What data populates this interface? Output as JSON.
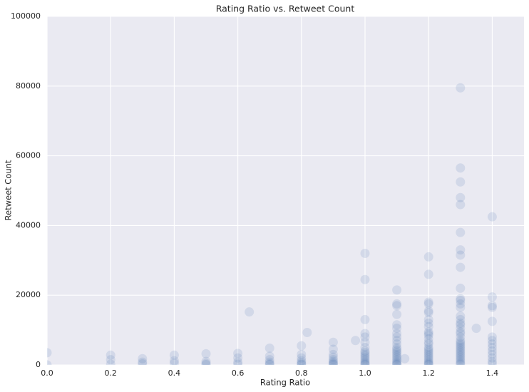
{
  "chart_data": {
    "type": "scatter",
    "title": "Rating Ratio vs. Retweet Count",
    "x_label": "Rating Ratio",
    "y_label": "Retweet Count",
    "color": "#4c72b0",
    "grid": true,
    "xlim": [
      0,
      1.5
    ],
    "ylim": [
      0,
      100000
    ],
    "xticks": [
      {
        "value": 0,
        "label": "0.0"
      },
      0.2,
      0.4,
      0.6,
      0.8,
      {
        "value": 1,
        "label": "1.0"
      },
      1.2,
      1.4
    ],
    "yticks": [
      0,
      20000,
      40000,
      60000,
      80000,
      100000
    ],
    "x": [
      0,
      0,
      0.2,
      0.2,
      0.2,
      0.3,
      0.3,
      0.3,
      0.4,
      0.4,
      0.4,
      0.5,
      0.5,
      0.5,
      0.5,
      0.6,
      0.6,
      0.6,
      0.6,
      0.636,
      0.7,
      0.7,
      0.7,
      0.7,
      0.7,
      0.7,
      0.8,
      0.8,
      0.8,
      0.8,
      0.8,
      0.8,
      0.8,
      0.818,
      0.9,
      0.9,
      0.9,
      0.9,
      0.9,
      0.9,
      0.9,
      0.9,
      0.9,
      0.97,
      1,
      1,
      1,
      1,
      1,
      1,
      1,
      1,
      1,
      1,
      1,
      1,
      1,
      1,
      1,
      1,
      1,
      1.1,
      1.1,
      1.1,
      1.1,
      1.1,
      1.1,
      1.1,
      1.1,
      1.1,
      1.1,
      1.1,
      1.1,
      1.1,
      1.1,
      1.1,
      1.1,
      1.1,
      1.1,
      1.1,
      1.1,
      1.1,
      1.1,
      1.125,
      1.2,
      1.2,
      1.2,
      1.2,
      1.2,
      1.2,
      1.2,
      1.2,
      1.2,
      1.2,
      1.2,
      1.2,
      1.2,
      1.2,
      1.2,
      1.2,
      1.2,
      1.2,
      1.2,
      1.2,
      1.2,
      1.2,
      1.2,
      1.2,
      1.2,
      1.2,
      1.2,
      1.3,
      1.3,
      1.3,
      1.3,
      1.3,
      1.3,
      1.3,
      1.3,
      1.3,
      1.3,
      1.3,
      1.3,
      1.3,
      1.3,
      1.3,
      1.3,
      1.3,
      1.3,
      1.3,
      1.3,
      1.3,
      1.3,
      1.3,
      1.3,
      1.3,
      1.3,
      1.3,
      1.3,
      1.3,
      1.3,
      1.3,
      1.3,
      1.3,
      1.3,
      1.3,
      1.3,
      1.3,
      1.35,
      1.4,
      1.4,
      1.4,
      1.4,
      1.4,
      1.4,
      1.4,
      1.4,
      1.4,
      1.4,
      1.4,
      1.4,
      1.4,
      1.4
    ],
    "values": [
      3500,
      0,
      2800,
      1500,
      200,
      1800,
      800,
      300,
      2800,
      1200,
      500,
      3200,
      1000,
      400,
      100,
      3300,
      2000,
      800,
      200,
      15200,
      4800,
      2500,
      1500,
      800,
      300,
      100,
      5500,
      3000,
      2000,
      1200,
      700,
      300,
      100,
      9300,
      6500,
      4500,
      3000,
      2200,
      1500,
      1000,
      600,
      300,
      100,
      7000,
      32000,
      24500,
      13000,
      9000,
      8000,
      6500,
      5000,
      4000,
      3500,
      3000,
      2500,
      2000,
      1500,
      1000,
      600,
      300,
      100,
      21500,
      17500,
      17000,
      14500,
      11500,
      10500,
      9000,
      8000,
      7000,
      6000,
      5000,
      4500,
      4000,
      3500,
      3000,
      2500,
      2000,
      1500,
      1000,
      600,
      300,
      100,
      1800,
      31000,
      26000,
      18000,
      17500,
      15500,
      15000,
      13000,
      12000,
      11000,
      9500,
      9000,
      8500,
      7500,
      6500,
      6000,
      5000,
      4500,
      4000,
      3500,
      3000,
      2500,
      2000,
      1500,
      1000,
      600,
      300,
      100,
      79500,
      56500,
      52500,
      48000,
      46000,
      38000,
      33000,
      31500,
      28000,
      22000,
      19000,
      18500,
      17500,
      16500,
      14000,
      13000,
      12000,
      11500,
      10500,
      9500,
      9000,
      8000,
      7000,
      6500,
      6000,
      5500,
      5000,
      4500,
      4000,
      3500,
      3000,
      2500,
      2000,
      1500,
      1000,
      500,
      200,
      10500,
      42500,
      19500,
      17000,
      16500,
      12500,
      8000,
      7000,
      6000,
      5000,
      4000,
      3000,
      2000,
      1000,
      300
    ]
  }
}
